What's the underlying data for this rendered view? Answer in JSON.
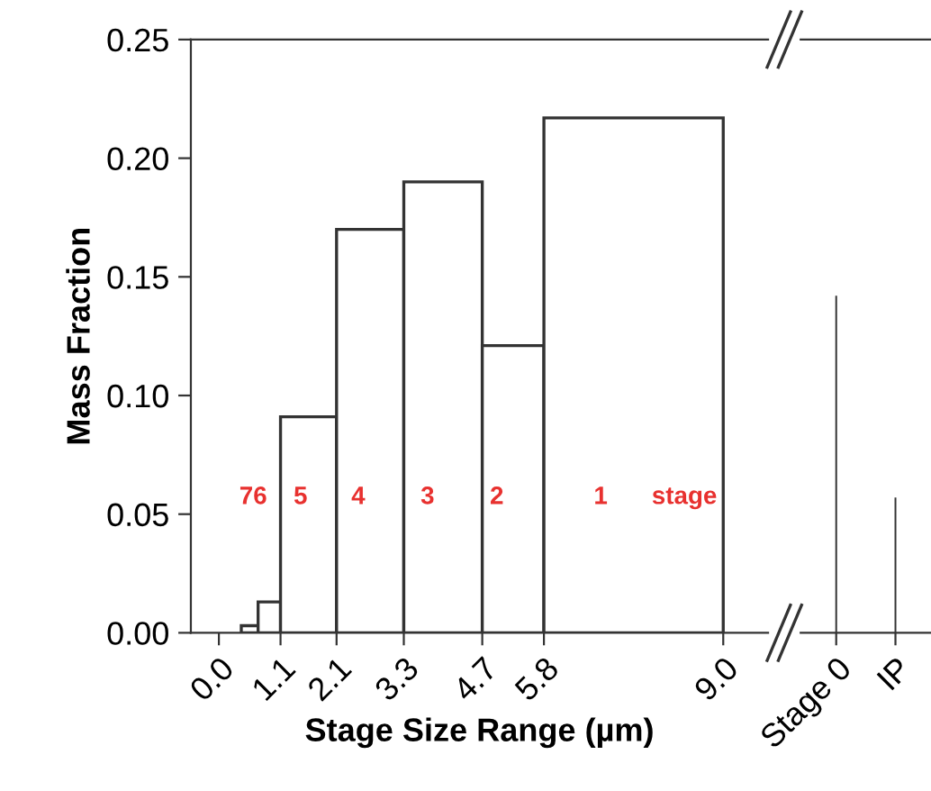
{
  "chart_data": [
    {
      "type": "histogram",
      "xlabel": "Stage Size Range (µm)",
      "ylabel": "Mass Fraction",
      "bins": [
        0.4,
        0.7,
        1.1,
        2.1,
        3.3,
        4.7,
        5.8,
        9.0
      ],
      "values": [
        0.003,
        0.013,
        0.091,
        0.17,
        0.19,
        0.121,
        0.217
      ],
      "color": "#333333",
      "xlim": [
        -0.5,
        9.8
      ],
      "ylim": [
        0,
        0.25
      ],
      "xticks": [
        {
          "value": 0,
          "label": "0.0"
        },
        1.1,
        2.1,
        3.3,
        4.7,
        5.8,
        {
          "value": 9,
          "label": "9.0"
        }
      ],
      "yticks": [
        {
          "value": 0,
          "label": "0.00"
        },
        {
          "value": 0.05,
          "label": "0.05"
        },
        {
          "value": 0.1,
          "label": "0.10"
        },
        {
          "value": 0.15,
          "label": "0.15"
        },
        {
          "value": 0.2,
          "label": "0.20"
        },
        {
          "value": 0.25,
          "label": "0.25"
        }
      ],
      "grid": false,
      "legend": false,
      "annotations": [
        "76",
        "5",
        "4",
        "3",
        "2",
        "1",
        "stage"
      ]
    },
    {
      "type": "bar",
      "categories": [
        "Stage 0",
        "IP"
      ],
      "values": [
        0.142,
        0.057
      ],
      "color": "#333333",
      "ylim": [
        0,
        0.25
      ],
      "tick_labels": "x",
      "grid": false,
      "legend": false
    }
  ]
}
